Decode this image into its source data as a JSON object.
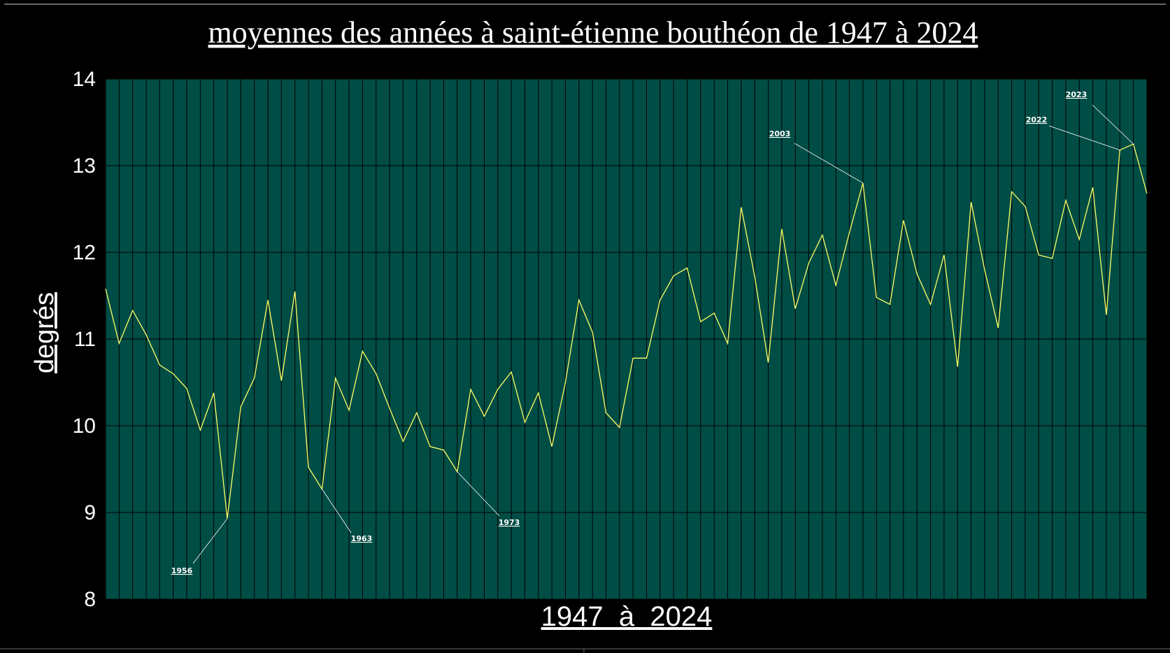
{
  "chart_data": {
    "type": "line",
    "title": "moyennes des années à saint-étienne bouthéon de 1947 à 2024",
    "xlabel": "1947  à  2024",
    "ylabel": "degrés",
    "ylim": [
      8,
      14
    ],
    "yticks": [
      "8",
      "9",
      "10",
      "11",
      "12",
      "13",
      "14"
    ],
    "grid": true,
    "colors": {
      "background": "#000000",
      "plot_area": "#004d45",
      "grid": "#000000",
      "line": "#ffff66",
      "text": "#ffffff"
    },
    "series": [
      {
        "x": [
          1947,
          1948,
          1949,
          1950,
          1951,
          1952,
          1953,
          1954,
          1955,
          1956,
          1957,
          1958,
          1959,
          1960,
          1961,
          1962,
          1963,
          1964,
          1965,
          1966,
          1967,
          1968,
          1969,
          1970,
          1971,
          1972,
          1973,
          1974,
          1975,
          1976,
          1977,
          1978,
          1979,
          1980,
          1981,
          1982,
          1983,
          1984,
          1985,
          1986,
          1987,
          1988,
          1989,
          1990,
          1991,
          1992,
          1993,
          1994,
          1995,
          1996,
          1997,
          1998,
          1999,
          2000,
          2001,
          2002,
          2003,
          2004,
          2005,
          2006,
          2007,
          2008,
          2009,
          2010,
          2011,
          2012,
          2013,
          2014,
          2015,
          2016,
          2017,
          2018,
          2019,
          2020,
          2021,
          2022,
          2023,
          2024
        ],
        "values": [
          11.58,
          10.95,
          11.33,
          11.05,
          10.7,
          10.6,
          10.43,
          9.95,
          10.38,
          8.93,
          10.22,
          10.55,
          11.45,
          10.52,
          11.55,
          9.52,
          9.27,
          10.55,
          10.18,
          10.86,
          10.6,
          10.2,
          9.82,
          10.15,
          9.76,
          9.72,
          9.47,
          10.42,
          10.11,
          10.42,
          10.62,
          10.04,
          10.38,
          9.76,
          10.5,
          11.45,
          11.08,
          10.15,
          9.98,
          10.78,
          10.78,
          11.45,
          11.73,
          11.82,
          11.2,
          11.3,
          10.95,
          12.52,
          11.72,
          10.73,
          12.27,
          11.35,
          11.88,
          12.2,
          11.62,
          12.23,
          12.8,
          11.48,
          11.4,
          12.37,
          11.75,
          11.4,
          11.97,
          10.68,
          12.58,
          11.8,
          11.13,
          12.7,
          12.53,
          11.97,
          11.93,
          12.6,
          12.15,
          12.75,
          11.28,
          13.18,
          13.25,
          12.68
        ]
      }
    ],
    "annotations": [
      {
        "label": "1956",
        "year": 1956
      },
      {
        "label": "1963",
        "year": 1963
      },
      {
        "label": "1973",
        "year": 1973
      },
      {
        "label": "2003",
        "year": 2003
      },
      {
        "label": "2022",
        "year": 2022
      },
      {
        "label": "2023",
        "year": 2023
      }
    ]
  }
}
